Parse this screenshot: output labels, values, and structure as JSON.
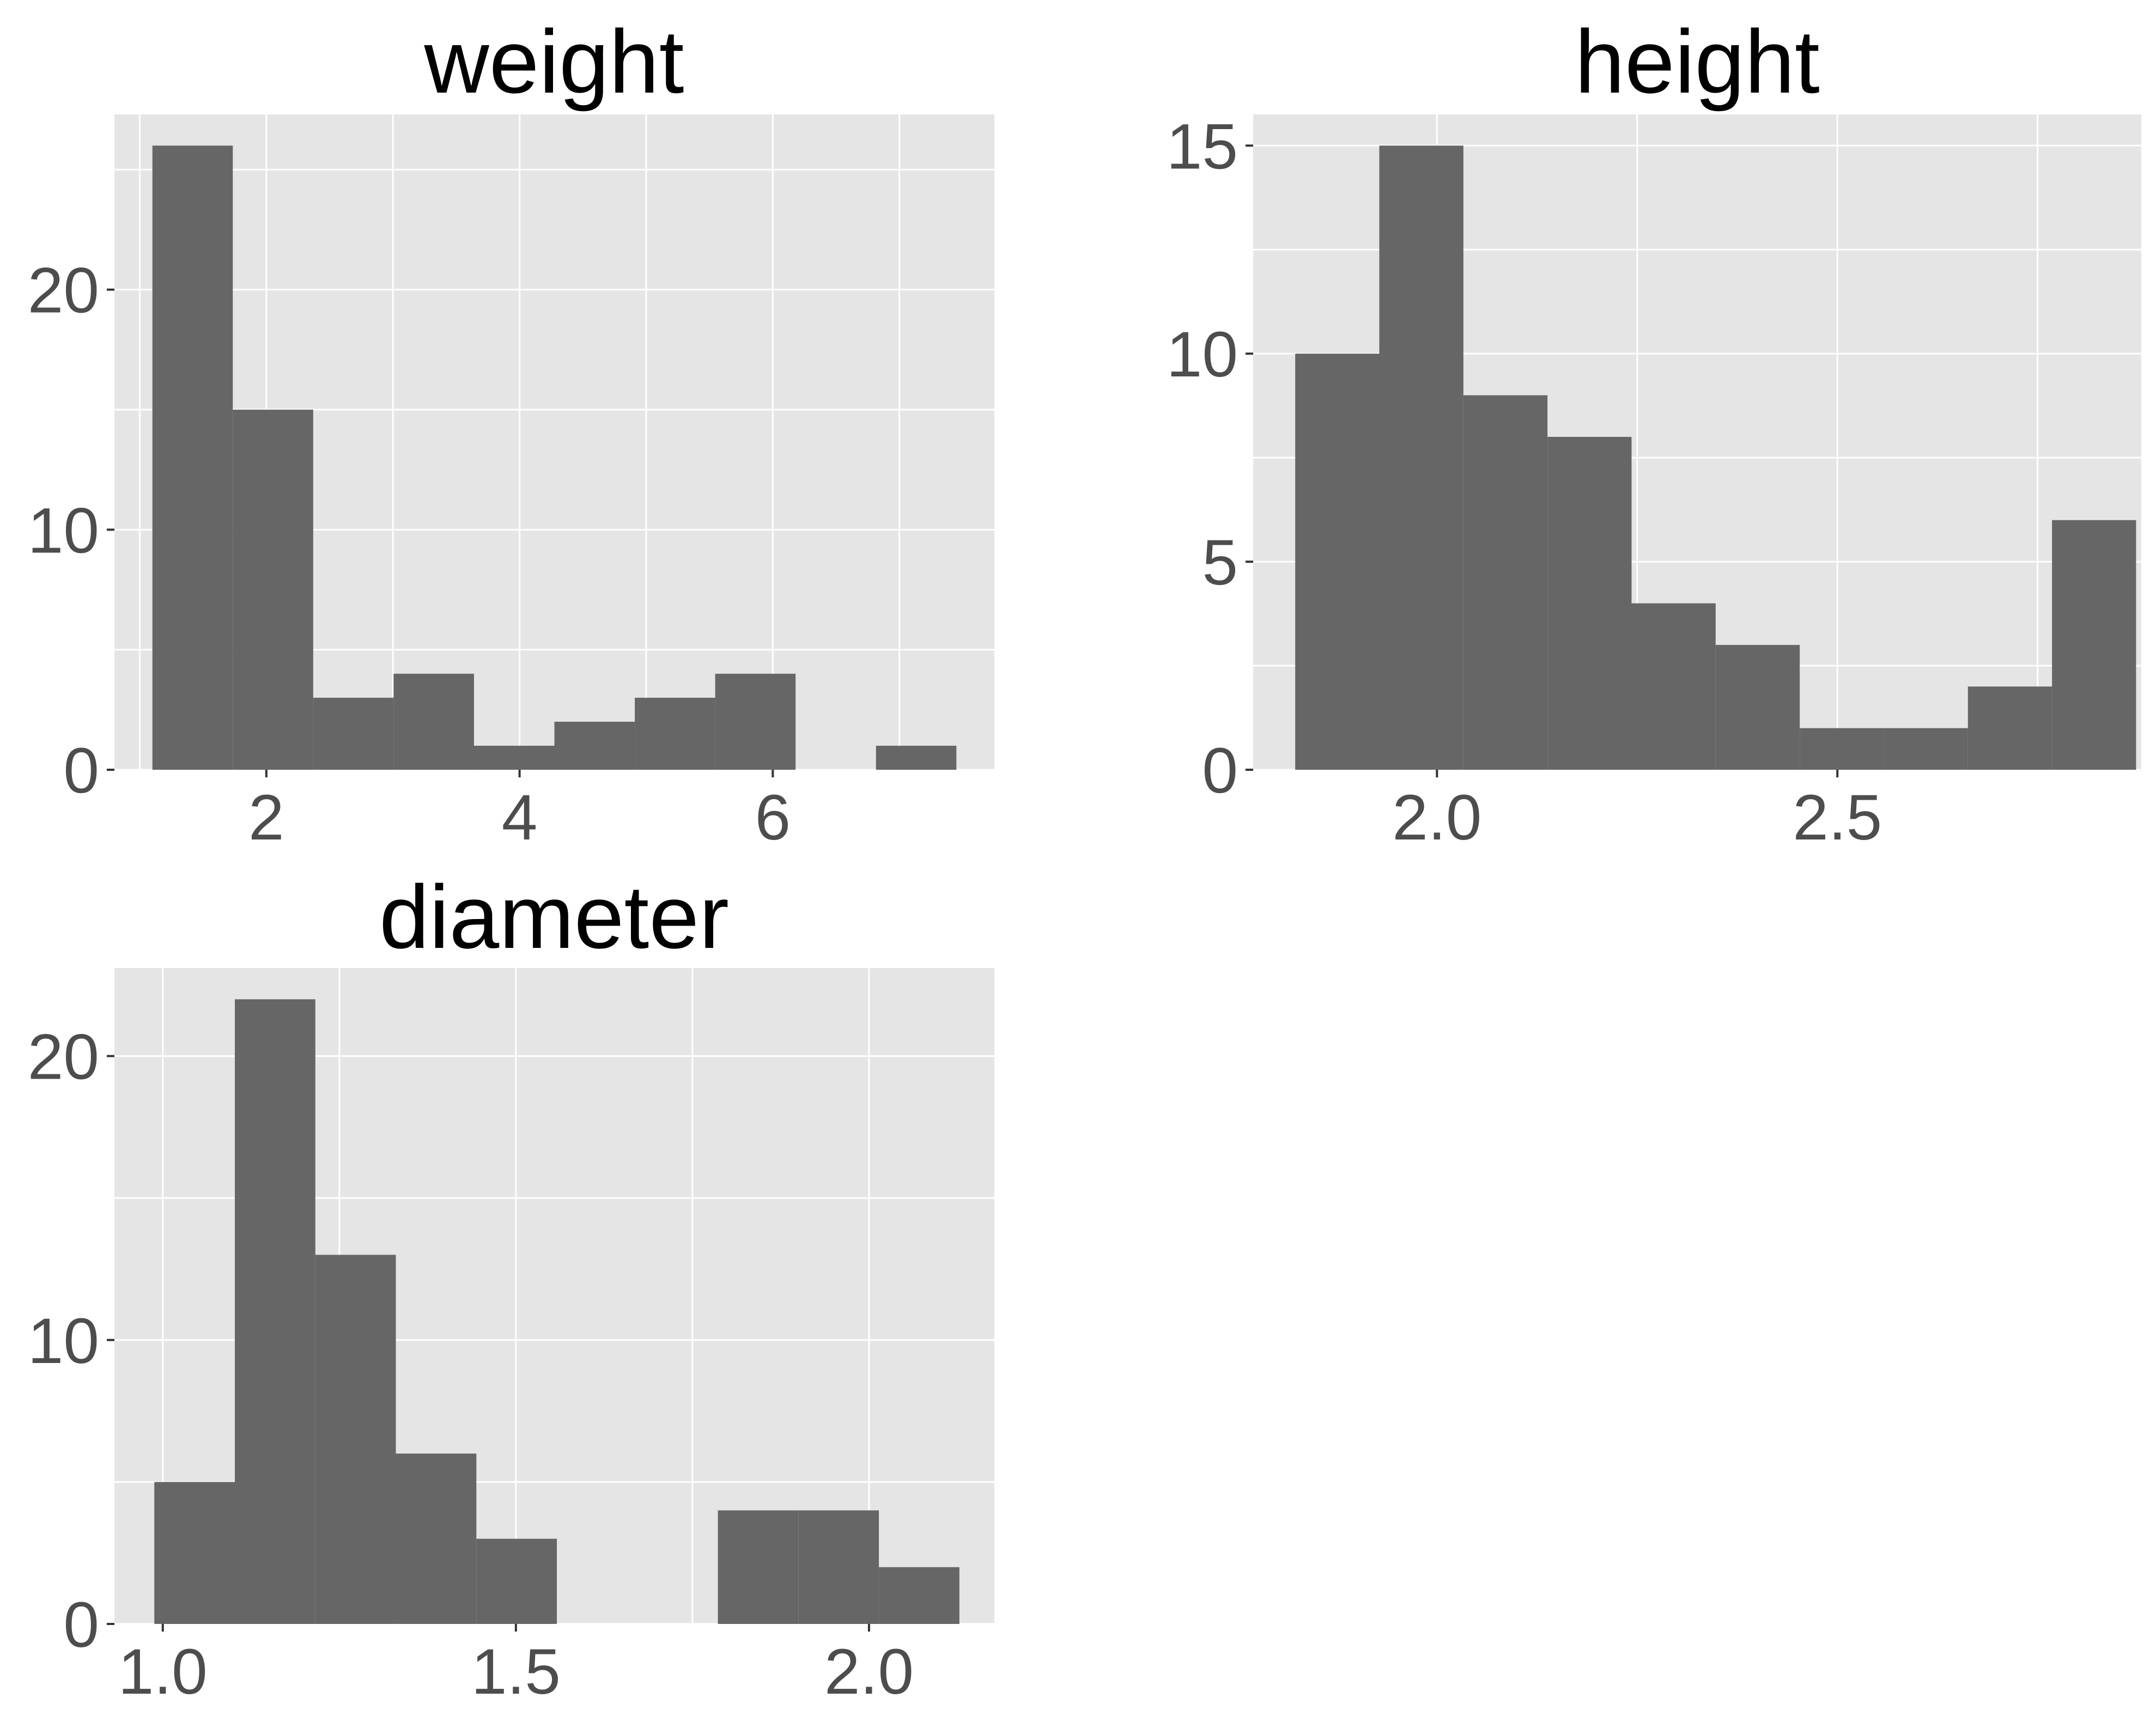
{
  "chart_data": [
    {
      "type": "bar",
      "title": "weight",
      "xlabel": "",
      "ylabel": "",
      "grid": true,
      "xlim": [
        0.8,
        7.75
      ],
      "ylim": [
        0,
        27.3
      ],
      "xticks": [
        2,
        4,
        6
      ],
      "xtick_labels": [
        "2",
        "4",
        "6"
      ],
      "yticks": [
        0,
        10,
        20
      ],
      "ytick_labels": [
        "0",
        "10",
        "20"
      ],
      "bins": [
        {
          "x0": 1.1,
          "x1": 1.735,
          "count": 26
        },
        {
          "x0": 1.735,
          "x1": 2.37,
          "count": 15
        },
        {
          "x0": 2.37,
          "x1": 3.005,
          "count": 3
        },
        {
          "x0": 3.005,
          "x1": 3.64,
          "count": 4
        },
        {
          "x0": 3.64,
          "x1": 4.275,
          "count": 1
        },
        {
          "x0": 4.275,
          "x1": 4.91,
          "count": 2
        },
        {
          "x0": 4.91,
          "x1": 5.545,
          "count": 3
        },
        {
          "x0": 5.545,
          "x1": 6.18,
          "count": 4
        },
        {
          "x0": 6.18,
          "x1": 6.815,
          "count": 0
        },
        {
          "x0": 6.815,
          "x1": 7.45,
          "count": 1
        }
      ]
    },
    {
      "type": "bar",
      "title": "height",
      "xlabel": "",
      "ylabel": "",
      "grid": true,
      "xlim": [
        1.7705,
        2.8795
      ],
      "ylim": [
        0,
        15.75
      ],
      "xticks": [
        2.0,
        2.5
      ],
      "xtick_labels": [
        "2.0",
        "2.5"
      ],
      "yticks": [
        0,
        5,
        10,
        15
      ],
      "ytick_labels": [
        "0",
        "5",
        "10",
        "15"
      ],
      "bins": [
        {
          "x0": 1.823,
          "x1": 1.928,
          "count": 10
        },
        {
          "x0": 1.928,
          "x1": 2.033,
          "count": 15
        },
        {
          "x0": 2.033,
          "x1": 2.138,
          "count": 9
        },
        {
          "x0": 2.138,
          "x1": 2.243,
          "count": 8
        },
        {
          "x0": 2.243,
          "x1": 2.348,
          "count": 4
        },
        {
          "x0": 2.348,
          "x1": 2.453,
          "count": 3
        },
        {
          "x0": 2.453,
          "x1": 2.558,
          "count": 1
        },
        {
          "x0": 2.558,
          "x1": 2.663,
          "count": 1
        },
        {
          "x0": 2.663,
          "x1": 2.768,
          "count": 2
        },
        {
          "x0": 2.768,
          "x1": 2.873,
          "count": 6
        }
      ]
    },
    {
      "type": "bar",
      "title": "diameter",
      "xlabel": "",
      "ylabel": "",
      "grid": true,
      "xlim": [
        0.9315,
        2.1775
      ],
      "ylim": [
        0,
        23.1
      ],
      "xticks": [
        1.0,
        1.5,
        2.0
      ],
      "xtick_labels": [
        "1.0",
        "1.5",
        "2.0"
      ],
      "yticks": [
        0,
        10,
        20
      ],
      "ytick_labels": [
        "0",
        "10",
        "20"
      ],
      "bins": [
        {
          "x0": 0.988,
          "x1": 1.102,
          "count": 5
        },
        {
          "x0": 1.102,
          "x1": 1.216,
          "count": 22
        },
        {
          "x0": 1.216,
          "x1": 1.33,
          "count": 13
        },
        {
          "x0": 1.33,
          "x1": 1.444,
          "count": 6
        },
        {
          "x0": 1.444,
          "x1": 1.558,
          "count": 3
        },
        {
          "x0": 1.558,
          "x1": 1.672,
          "count": 0
        },
        {
          "x0": 1.672,
          "x1": 1.786,
          "count": 0
        },
        {
          "x0": 1.786,
          "x1": 1.9,
          "count": 4
        },
        {
          "x0": 1.9,
          "x1": 2.014,
          "count": 4
        },
        {
          "x0": 2.014,
          "x1": 2.128,
          "count": 2
        }
      ]
    }
  ],
  "colors": {
    "panel_background": "#e5e5e5",
    "grid": "#ffffff",
    "bar_fill": "#666666",
    "tick_text": "#4d4d4d",
    "title_text": "#000000"
  }
}
